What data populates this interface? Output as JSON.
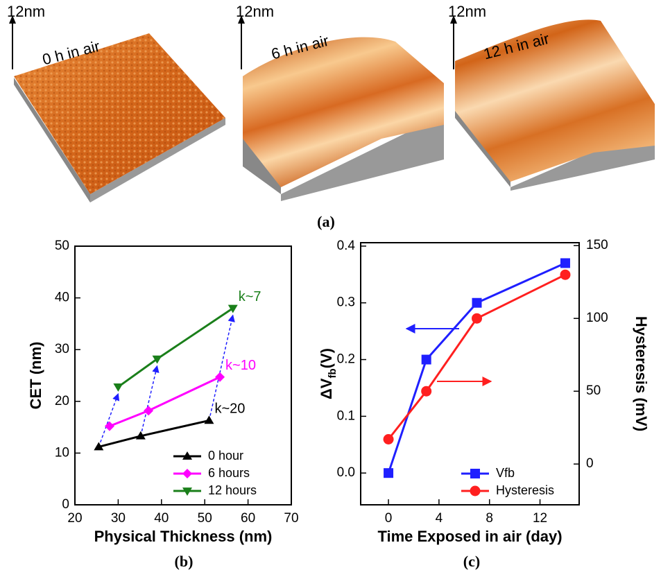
{
  "afm_images": [
    {
      "scale": "12nm",
      "label": "0 h in air"
    },
    {
      "scale": "12nm",
      "label": "6 h in air"
    },
    {
      "scale": "12nm",
      "label": "12 h in air"
    }
  ],
  "afm_caption": "(a)",
  "chart_data": [
    {
      "type": "line",
      "caption": "(b)",
      "xlabel": "Physical Thickness (nm)",
      "ylabel": "CET (nm)",
      "xlim": [
        20,
        70
      ],
      "ylim": [
        0,
        50
      ],
      "xticks": [
        20,
        30,
        40,
        50,
        60,
        70
      ],
      "yticks": [
        0,
        10,
        20,
        30,
        40,
        50
      ],
      "legend": "lower right",
      "series": [
        {
          "name": "0 hour",
          "color": "#000000",
          "marker": "triangle-up",
          "label": "k~20",
          "x": [
            25.5,
            35.2,
            51
          ],
          "values": [
            11.2,
            13.3,
            16.3
          ]
        },
        {
          "name": "6 hours",
          "color": "#ff00ff",
          "marker": "diamond",
          "label": "k~10",
          "x": [
            28,
            37,
            53.5
          ],
          "values": [
            15.2,
            18.2,
            24.7
          ]
        },
        {
          "name": "12 hours",
          "color": "#1a7f1a",
          "marker": "triangle-down",
          "label": "k~7",
          "x": [
            30,
            39,
            56.5
          ],
          "values": [
            22.8,
            28.2,
            38
          ]
        }
      ]
    },
    {
      "type": "line",
      "caption": "(c)",
      "xlabel": "Time Exposed in air (day)",
      "ylabel_parts": [
        "ΔV",
        "fb",
        "(V)"
      ],
      "y2label": "Hysteresis (mV)",
      "xlim": [
        -2.2,
        15.1
      ],
      "ylim": [
        -0.056,
        0.406
      ],
      "y2lim": [
        -28,
        152
      ],
      "xticks": [
        0,
        4,
        8,
        12
      ],
      "yticks": [
        {
          "value": 0,
          "label": "0.0"
        },
        0.1,
        0.2,
        0.3,
        0.4
      ],
      "y2ticks": [
        0,
        50,
        100,
        150
      ],
      "legend": "lower right",
      "x": [
        0,
        3,
        7,
        14
      ],
      "series": [
        {
          "name": "Vfb",
          "color": "#1f1fff",
          "marker": "square",
          "values": [
            0.0,
            0.2,
            0.3,
            0.37
          ]
        },
        {
          "name": "Hysteresis",
          "color": "#ff1f1f",
          "marker": "circle",
          "axis": "y2",
          "values": [
            17,
            50,
            100,
            130
          ]
        }
      ]
    }
  ]
}
